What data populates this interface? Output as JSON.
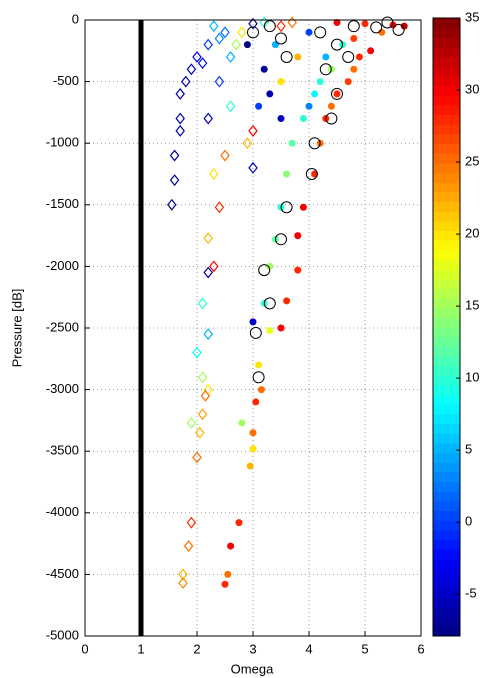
{
  "chart_data": {
    "type": "scatter",
    "xlabel": "Omega",
    "ylabel": "Pressure [dB]",
    "xlim": [
      0,
      6
    ],
    "ylim": [
      -5000,
      0
    ],
    "xticks": [
      0,
      1,
      2,
      3,
      4,
      5,
      6
    ],
    "yticks": [
      -5000,
      -4500,
      -4000,
      -3500,
      -3000,
      -2500,
      -2000,
      -1500,
      -1000,
      -500,
      0
    ],
    "grid": true,
    "vline": 1,
    "vline_color": "#000000",
    "colorbar": {
      "colormap": "jet",
      "clim": [
        -7.9,
        35
      ],
      "ticks": [
        -5,
        0,
        5,
        10,
        15,
        20,
        25,
        30,
        35
      ]
    },
    "series": [
      {
        "marker": "diamond",
        "x": [
          2.3,
          2.5,
          2.2,
          2.0,
          2.4,
          1.9,
          1.8,
          1.7,
          2.1,
          1.7,
          1.7,
          1.6,
          1.6,
          1.55,
          2.2,
          2.4,
          2.6,
          2.8,
          3.0,
          2.7,
          3.2,
          2.5,
          2.3,
          2.4,
          2.2,
          2.3,
          2.2,
          2.1,
          2.2,
          2.0,
          2.1,
          2.2,
          2.15,
          2.1,
          1.9,
          2.0,
          2.05,
          1.9,
          1.85,
          1.75,
          1.75,
          3.0,
          3.5,
          3.7,
          2.6,
          3.0,
          2.9
        ],
        "y": [
          -50,
          -100,
          -200,
          -300,
          -150,
          -400,
          -500,
          -600,
          -350,
          -800,
          -900,
          -1100,
          -1300,
          -1500,
          -800,
          -500,
          -300,
          -100,
          -30,
          -200,
          -20,
          -1100,
          -1250,
          -1520,
          -1770,
          -2000,
          -2050,
          -2300,
          -2550,
          -2700,
          -2900,
          -3000,
          -3050,
          -3200,
          -3270,
          -3550,
          -3350,
          -4080,
          -4270,
          -4500,
          -4570,
          -1200,
          -50,
          -20,
          -700,
          -900,
          -1000
        ],
        "c": [
          5,
          2,
          0,
          -3,
          3,
          -5,
          -6,
          -6,
          -2,
          -6,
          -6,
          -7,
          -7,
          -7,
          -5,
          0,
          5,
          20,
          -7,
          15,
          10,
          25,
          20,
          28,
          22,
          30,
          -6,
          10,
          5,
          8,
          15,
          20,
          25,
          23,
          15,
          25,
          22,
          28,
          25,
          22,
          24,
          -5,
          28,
          25,
          10,
          30,
          22
        ]
      },
      {
        "marker": "circle",
        "x": [
          4.0,
          4.5,
          5.0,
          5.5,
          5.7,
          5.3,
          4.8,
          4.6,
          4.3,
          4.9,
          5.1,
          4.4,
          4.8,
          4.2,
          4.7,
          4.1,
          4.5,
          4.0,
          4.4,
          3.5,
          3.9,
          4.3,
          3.7,
          4.2,
          3.6,
          4.1,
          3.5,
          3.9,
          3.4,
          3.8,
          3.3,
          3.8,
          3.2,
          3.6,
          3.0,
          3.3,
          3.5,
          3.1,
          3.15,
          3.05,
          2.8,
          3.0,
          3.0,
          2.95,
          2.75,
          2.6,
          2.55,
          2.5,
          3.2,
          2.9,
          3.3,
          3.1,
          3.5,
          3.8,
          3.4
        ],
        "y": [
          -100,
          -20,
          -30,
          -40,
          -50,
          -100,
          -150,
          -200,
          -300,
          -300,
          -250,
          -400,
          -400,
          -500,
          -500,
          -600,
          -600,
          -700,
          -700,
          -800,
          -800,
          -800,
          -1000,
          -1000,
          -1250,
          -1250,
          -1520,
          -1520,
          -1780,
          -1750,
          -2000,
          -2030,
          -2300,
          -2280,
          -2450,
          -2520,
          -2500,
          -2800,
          -3000,
          -3100,
          -3270,
          -3350,
          -3480,
          -3620,
          -4080,
          -4270,
          -4500,
          -4580,
          -400,
          -200,
          -600,
          -700,
          -500,
          -300,
          -200
        ],
        "c": [
          0,
          30,
          28,
          30,
          32,
          25,
          27,
          10,
          5,
          28,
          30,
          15,
          25,
          10,
          27,
          8,
          28,
          3,
          25,
          -5,
          10,
          28,
          12,
          25,
          14,
          28,
          10,
          30,
          12,
          30,
          15,
          28,
          10,
          28,
          -5,
          18,
          30,
          20,
          25,
          28,
          15,
          25,
          20,
          22,
          28,
          30,
          25,
          28,
          -7,
          -8,
          -6,
          0,
          20,
          22,
          5
        ]
      },
      {
        "marker": "open-circle",
        "color": "#000000",
        "x": [
          4.2,
          4.8,
          5.2,
          5.6,
          4.5,
          4.3,
          4.5,
          4.4,
          4.1,
          4.05,
          3.6,
          3.5,
          3.2,
          3.3,
          3.05,
          3.1,
          3.0,
          3.3,
          3.5,
          3.6,
          5.4,
          4.7
        ],
        "y": [
          -100,
          -50,
          -60,
          -80,
          -200,
          -400,
          -600,
          -800,
          -1000,
          -1250,
          -1520,
          -1780,
          -2030,
          -2300,
          -2540,
          -2900,
          -100,
          -50,
          -150,
          -300,
          -20,
          -300
        ]
      }
    ]
  }
}
